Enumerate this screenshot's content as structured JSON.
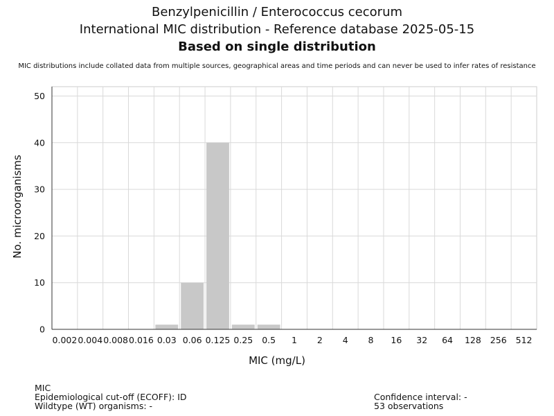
{
  "title_line1": "Benzylpenicillin / Enterococcus cecorum",
  "title_line2": "International MIC distribution - Reference database 2025-05-15",
  "title_line3": "Based on single distribution",
  "subtitle": "MIC distributions include collated data from multiple sources, geographical areas and time periods and can never be used to infer rates of resistance",
  "chart_data": {
    "type": "bar",
    "categories": [
      "0.002",
      "0.004",
      "0.008",
      "0.016",
      "0.03",
      "0.06",
      "0.125",
      "0.25",
      "0.5",
      "1",
      "2",
      "4",
      "8",
      "16",
      "32",
      "64",
      "128",
      "256",
      "512"
    ],
    "values": [
      0,
      0,
      0,
      0,
      1,
      10,
      40,
      1,
      1,
      0,
      0,
      0,
      0,
      0,
      0,
      0,
      0,
      0,
      0
    ],
    "xlabel": "MIC (mg/L)",
    "ylabel": "No. microorganisms",
    "ylim": [
      0,
      52
    ],
    "yticks": [
      0,
      10,
      20,
      30,
      40,
      50
    ],
    "grid": true,
    "bar_color": "#c8c8c8"
  },
  "footer": {
    "mic": "MIC",
    "ecoff": "Epidemiological cut-off (ECOFF): ID",
    "wt": "Wildtype (WT) organisms:  -",
    "ci": "Confidence interval: -",
    "observations": "53 observations"
  }
}
